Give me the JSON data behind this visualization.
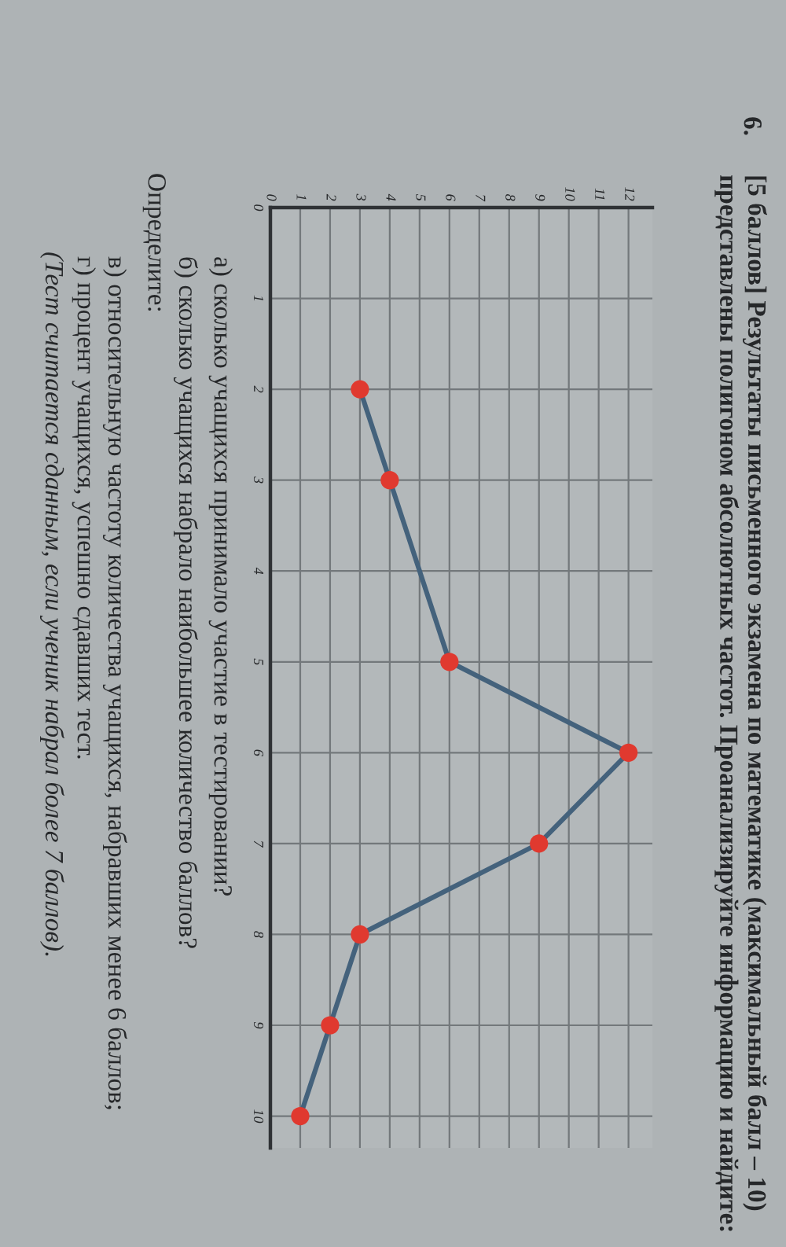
{
  "chart_data": {
    "type": "line",
    "title": "[5 баллов] Результаты письменного экзамена по математике (максимальный балл – 10) представлены полигоном абсолютных частот. Проанализируйте информацию и найдите:",
    "annotations": [
      "6.",
      "а) сколько учащихся принимало участие в тестировании?",
      "б) сколько учащихся набрало наибольшее количество баллов?",
      "Определите:",
      "в) относительную частоту количества учащихся, набравших менее 6 баллов;",
      "г) процент учащихся, успешно сдавших тест.",
      "(Тест считается сданным, если ученик набрал более 7 баллов)."
    ],
    "orientation": "horizontal",
    "x": [
      2,
      3,
      5,
      6,
      7,
      8,
      9,
      10
    ],
    "series": [
      {
        "color": "#44627c",
        "colors": [
          "#e0392f",
          "#e0392f",
          "#e0392f",
          "#e0392f",
          "#e0392f",
          "#e0392f",
          "#e0392f",
          "#e0392f"
        ],
        "values": [
          3,
          4,
          6,
          12,
          9,
          3,
          2,
          1
        ]
      }
    ],
    "xlim": [
      0,
      12.8
    ],
    "xticks": [
      0,
      1,
      2,
      3,
      4,
      5,
      6,
      7,
      8,
      9,
      10,
      11,
      12
    ],
    "ylim": [
      10.35,
      0
    ],
    "yticks": [
      0,
      1,
      2,
      3,
      4,
      5,
      6,
      7,
      8,
      9,
      10
    ],
    "grid": true,
    "marker": "circle",
    "line_style": "solid"
  }
}
